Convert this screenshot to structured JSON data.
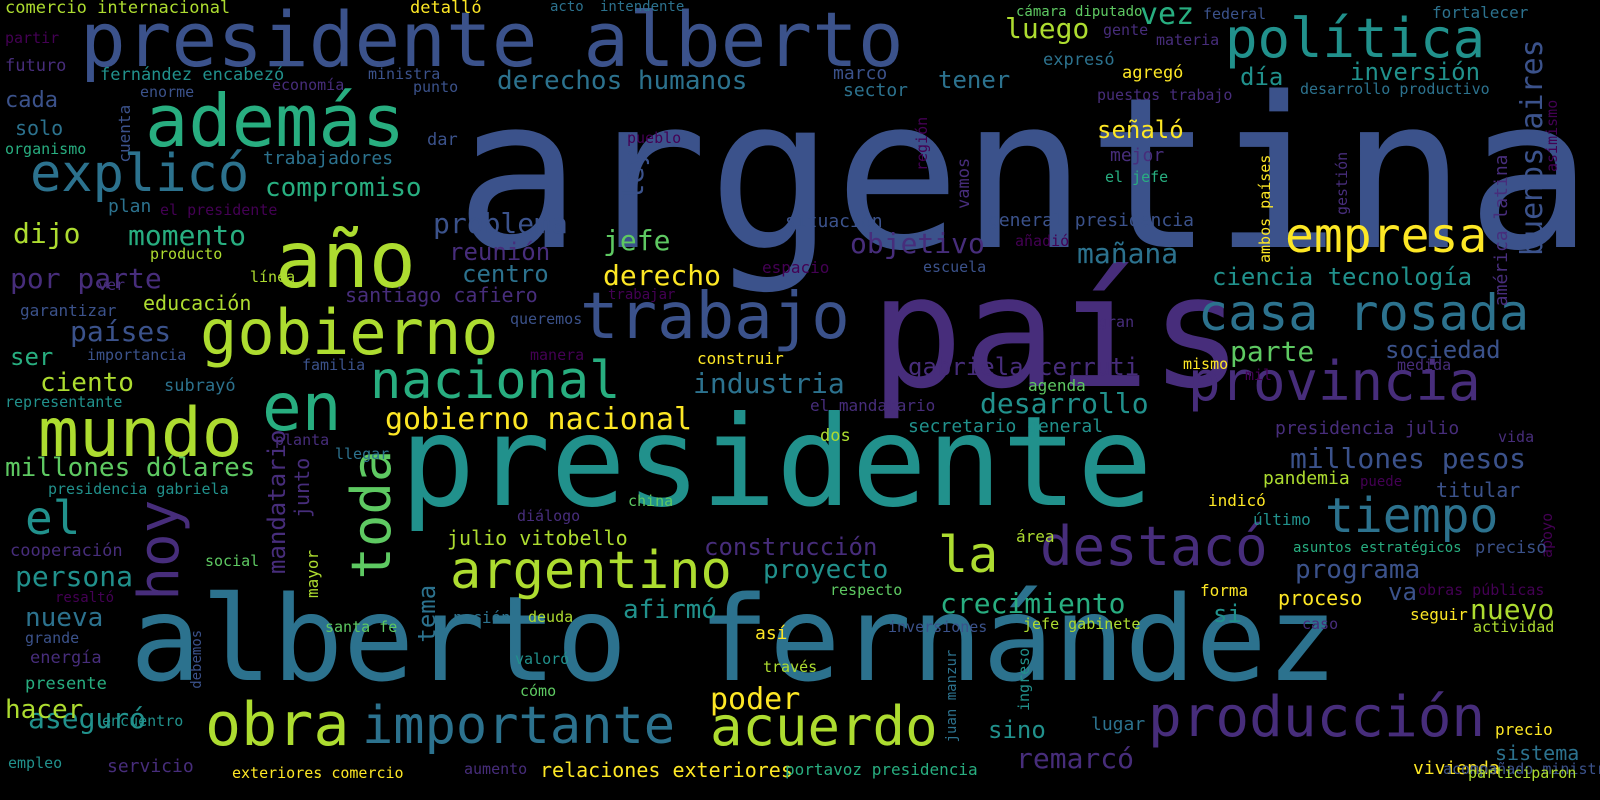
{
  "palette": {
    "background": "#000000",
    "dark_purple": "#440154",
    "purple": "#472d7b",
    "indigo": "#3b528b",
    "blue": "#2c728e",
    "teal": "#21918c",
    "green": "#28ae80",
    "light_green": "#5ec962",
    "lime": "#addc30",
    "yellow": "#fde725"
  },
  "words": [
    {
      "text": "argentina",
      "color": "#3b528b",
      "rot": 0
    },
    {
      "text": "país",
      "color": "#472d7b",
      "rot": 0
    },
    {
      "text": "presidente",
      "color": "#21918c",
      "rot": 0
    },
    {
      "text": "alberto fernández",
      "color": "#2c728e",
      "rot": 0
    },
    {
      "text": "presidente alberto",
      "color": "#3b528b",
      "rot": 0
    },
    {
      "text": "además",
      "color": "#28ae80",
      "rot": 0
    },
    {
      "text": "año",
      "color": "#addc30",
      "rot": 0
    },
    {
      "text": "explicó",
      "color": "#2c728e",
      "rot": 0
    },
    {
      "text": "gobierno",
      "color": "#addc30",
      "rot": 0
    },
    {
      "text": "trabajo",
      "color": "#3b528b",
      "rot": 0
    },
    {
      "text": "política",
      "color": "#21918c",
      "rot": 0
    },
    {
      "text": "empresa",
      "color": "#fde725",
      "rot": 0
    },
    {
      "text": "casa rosada",
      "color": "#2c728e",
      "rot": 0
    },
    {
      "text": "provincia",
      "color": "#472d7b",
      "rot": 0
    },
    {
      "text": "en",
      "color": "#28ae80",
      "rot": 0
    },
    {
      "text": "nacional",
      "color": "#28ae80",
      "rot": 0
    },
    {
      "text": "mundo",
      "color": "#addc30",
      "rot": 0
    },
    {
      "text": "el",
      "color": "#21918c",
      "rot": 0
    },
    {
      "text": "hoy",
      "color": "#472d7b",
      "rot": -90
    },
    {
      "text": "toda",
      "color": "#5ec962",
      "rot": -90
    },
    {
      "text": "argentino",
      "color": "#addc30",
      "rot": 0
    },
    {
      "text": "la",
      "color": "#addc30",
      "rot": 0
    },
    {
      "text": "destacó",
      "color": "#472d7b",
      "rot": 0
    },
    {
      "text": "tiempo",
      "color": "#2c728e",
      "rot": 0
    },
    {
      "text": "obra",
      "color": "#addc30",
      "rot": 0
    },
    {
      "text": "importante",
      "color": "#2c728e",
      "rot": 0
    },
    {
      "text": "acuerdo",
      "color": "#addc30",
      "rot": 0
    },
    {
      "text": "producción",
      "color": "#472d7b",
      "rot": 0
    },
    {
      "text": "derechos humanos",
      "color": "#2c728e",
      "rot": 0
    },
    {
      "text": "luego",
      "color": "#addc30",
      "rot": 0
    },
    {
      "text": "vez",
      "color": "#28ae80",
      "rot": 0
    },
    {
      "text": "tener",
      "color": "#2c728e",
      "rot": 0
    },
    {
      "text": "día",
      "color": "#21918c",
      "rot": 0
    },
    {
      "text": "inversión",
      "color": "#21918c",
      "rot": 0
    },
    {
      "text": "buenos aires",
      "color": "#3b528b",
      "rot": -90
    },
    {
      "text": "américa latina",
      "color": "#472d7b",
      "rot": -90
    },
    {
      "text": "señaló",
      "color": "#fde725",
      "rot": 0
    },
    {
      "text": "mejor",
      "color": "#472d7b",
      "rot": 0
    },
    {
      "text": "el jefe",
      "color": "#28ae80",
      "rot": 0
    },
    {
      "text": "ley",
      "color": "#3b528b",
      "rot": -90
    },
    {
      "text": "compromiso",
      "color": "#28ae80",
      "rot": 0
    },
    {
      "text": "trabajadores",
      "color": "#2c728e",
      "rot": 0
    },
    {
      "text": "dijo",
      "color": "#addc30",
      "rot": 0
    },
    {
      "text": "momento",
      "color": "#28ae80",
      "rot": 0
    },
    {
      "text": "problema",
      "color": "#3b528b",
      "rot": 0
    },
    {
      "text": "jefe",
      "color": "#5ec962",
      "rot": 0
    },
    {
      "text": "objetivo",
      "color": "#472d7b",
      "rot": 0
    },
    {
      "text": "mañana",
      "color": "#2c728e",
      "rot": 0
    },
    {
      "text": "reunión",
      "color": "#472d7b",
      "rot": 0
    },
    {
      "text": "centro",
      "color": "#2c728e",
      "rot": 0
    },
    {
      "text": "derecho",
      "color": "#fde725",
      "rot": 0
    },
    {
      "text": "por parte",
      "color": "#472d7b",
      "rot": 0
    },
    {
      "text": "santiago cafiero",
      "color": "#472d7b",
      "rot": 0
    },
    {
      "text": "ciencia tecnología",
      "color": "#21918c",
      "rot": 0
    },
    {
      "text": "países",
      "color": "#3b528b",
      "rot": 0
    },
    {
      "text": "educación",
      "color": "#addc30",
      "rot": 0
    },
    {
      "text": "ser",
      "color": "#28ae80",
      "rot": 0
    },
    {
      "text": "parte",
      "color": "#5ec962",
      "rot": 0
    },
    {
      "text": "sociedad",
      "color": "#3b528b",
      "rot": 0
    },
    {
      "text": "gabriela cerruti",
      "color": "#472d7b",
      "rot": 0
    },
    {
      "text": "ciento",
      "color": "#addc30",
      "rot": 0
    },
    {
      "text": "industria",
      "color": "#2c728e",
      "rot": 0
    },
    {
      "text": "desarrollo",
      "color": "#21918c",
      "rot": 0
    },
    {
      "text": "gobierno nacional",
      "color": "#fde725",
      "rot": 0
    },
    {
      "text": "secretario general",
      "color": "#21918c",
      "rot": 0
    },
    {
      "text": "millones dólares",
      "color": "#5ec962",
      "rot": 0
    },
    {
      "text": "millones pesos",
      "color": "#3b528b",
      "rot": 0
    },
    {
      "text": "presidencia julio",
      "color": "#472d7b",
      "rot": 0
    },
    {
      "text": "mandatario",
      "color": "#472d7b",
      "rot": -90
    },
    {
      "text": "junto",
      "color": "#472d7b",
      "rot": -90
    },
    {
      "text": "pandemia",
      "color": "#addc30",
      "rot": 0
    },
    {
      "text": "titular",
      "color": "#3b528b",
      "rot": 0
    },
    {
      "text": "julio vitobello",
      "color": "#addc30",
      "rot": 0
    },
    {
      "text": "construcción",
      "color": "#472d7b",
      "rot": 0
    },
    {
      "text": "proyecto",
      "color": "#21918c",
      "rot": 0
    },
    {
      "text": "programa",
      "color": "#3b528b",
      "rot": 0
    },
    {
      "text": "persona",
      "color": "#21918c",
      "rot": 0
    },
    {
      "text": "nueva",
      "color": "#2c728e",
      "rot": 0
    },
    {
      "text": "afirmó",
      "color": "#21918c",
      "rot": 0
    },
    {
      "text": "crecimiento",
      "color": "#28ae80",
      "rot": 0
    },
    {
      "text": "si",
      "color": "#21918c",
      "rot": 0
    },
    {
      "text": "va",
      "color": "#3b528b",
      "rot": 0
    },
    {
      "text": "nuevo",
      "color": "#addc30",
      "rot": 0
    },
    {
      "text": "tema",
      "color": "#2c728e",
      "rot": -90
    },
    {
      "text": "poder",
      "color": "#fde725",
      "rot": 0
    },
    {
      "text": "proceso",
      "color": "#fde725",
      "rot": 0
    },
    {
      "text": "sino",
      "color": "#21918c",
      "rot": 0
    },
    {
      "text": "remarcó",
      "color": "#472d7b",
      "rot": 0
    },
    {
      "text": "aseguró",
      "color": "#21918c",
      "rot": 0
    },
    {
      "text": "hacer",
      "color": "#addc30",
      "rot": 0
    },
    {
      "text": "sistema",
      "color": "#2c728e",
      "rot": 0
    },
    {
      "text": "vivienda",
      "color": "#fde725",
      "rot": 0
    },
    {
      "text": "relaciones exteriores",
      "color": "#fde725",
      "rot": 0
    },
    {
      "text": "portavoz presidencia",
      "color": "#28ae80",
      "rot": 0
    },
    {
      "text": "comercio internacional",
      "color": "#addc30",
      "rot": 0
    },
    {
      "text": "detalló",
      "color": "#fde725",
      "rot": 0
    },
    {
      "text": "acto",
      "color": "#2c728e",
      "rot": 0
    },
    {
      "text": "intendente",
      "color": "#2c728e",
      "rot": 0
    },
    {
      "text": "cámara diputado",
      "color": "#5ec962",
      "rot": 0
    },
    {
      "text": "federal",
      "color": "#3b528b",
      "rot": 0
    },
    {
      "text": "fortalecer",
      "color": "#2c728e",
      "rot": 0
    },
    {
      "text": "partir",
      "color": "#440154",
      "rot": 0
    },
    {
      "text": "futuro",
      "color": "#472d7b",
      "rot": 0
    },
    {
      "text": "cada",
      "color": "#3b528b",
      "rot": 0
    },
    {
      "text": "solo",
      "color": "#2c728e",
      "rot": 0
    },
    {
      "text": "organismo",
      "color": "#28ae80",
      "rot": 0
    },
    {
      "text": "fernández encabezó",
      "color": "#21918c",
      "rot": 0
    },
    {
      "text": "economía",
      "color": "#472d7b",
      "rot": 0
    },
    {
      "text": "ministra",
      "color": "#3b528b",
      "rot": 0
    },
    {
      "text": "enorme",
      "color": "#3b528b",
      "rot": 0
    },
    {
      "text": "punto",
      "color": "#3b528b",
      "rot": 0
    },
    {
      "text": "marco",
      "color": "#3b528b",
      "rot": 0
    },
    {
      "text": "sector",
      "color": "#2c728e",
      "rot": 0
    },
    {
      "text": "expresó",
      "color": "#2c728e",
      "rot": 0
    },
    {
      "text": "gente",
      "color": "#472d7b",
      "rot": 0
    },
    {
      "text": "materia",
      "color": "#472d7b",
      "rot": 0
    },
    {
      "text": "agregó",
      "color": "#fde725",
      "rot": 0
    },
    {
      "text": "puestos trabajo",
      "color": "#472d7b",
      "rot": 0
    },
    {
      "text": "desarrollo productivo",
      "color": "#2c728e",
      "rot": 0
    },
    {
      "text": "cuenta",
      "color": "#3b528b",
      "rot": -90
    },
    {
      "text": "plan",
      "color": "#2c728e",
      "rot": 0
    },
    {
      "text": "el presidente",
      "color": "#440154",
      "rot": 0
    },
    {
      "text": "dar",
      "color": "#3b528b",
      "rot": 0
    },
    {
      "text": "pueblo",
      "color": "#440154",
      "rot": 0
    },
    {
      "text": "región",
      "color": "#440154",
      "rot": -90
    },
    {
      "text": "gestión",
      "color": "#472d7b",
      "rot": -90
    },
    {
      "text": "asimismo",
      "color": "#440154",
      "rot": -90
    },
    {
      "text": "ambos países",
      "color": "#fde725",
      "rot": -90
    },
    {
      "text": "ver",
      "color": "#472d7b",
      "rot": 0
    },
    {
      "text": "producto",
      "color": "#addc30",
      "rot": 0
    },
    {
      "text": "situación",
      "color": "#3b528b",
      "rot": 0
    },
    {
      "text": "vamos",
      "color": "#472d7b",
      "rot": -90
    },
    {
      "text": "general presidencia",
      "color": "#3b528b",
      "rot": 0
    },
    {
      "text": "añadió",
      "color": "#440154",
      "rot": 0
    },
    {
      "text": "línea",
      "color": "#addc30",
      "rot": 0
    },
    {
      "text": "espacio",
      "color": "#440154",
      "rot": 0
    },
    {
      "text": "escuela",
      "color": "#3b528b",
      "rot": 0
    },
    {
      "text": "trabajar",
      "color": "#440154",
      "rot": 0
    },
    {
      "text": "garantizar",
      "color": "#3b528b",
      "rot": 0
    },
    {
      "text": "queremos",
      "color": "#3b528b",
      "rot": 0
    },
    {
      "text": "gran",
      "color": "#472d7b",
      "rot": 0
    },
    {
      "text": "importancia",
      "color": "#3b528b",
      "rot": 0
    },
    {
      "text": "manera",
      "color": "#440154",
      "rot": 0
    },
    {
      "text": "construir",
      "color": "#fde725",
      "rot": 0
    },
    {
      "text": "mismo",
      "color": "#fde725",
      "rot": 0
    },
    {
      "text": "medida",
      "color": "#472d7b",
      "rot": 0
    },
    {
      "text": "familia",
      "color": "#3b528b",
      "rot": 0
    },
    {
      "text": "agenda",
      "color": "#5ec962",
      "rot": 0
    },
    {
      "text": "mil",
      "color": "#440154",
      "rot": 0
    },
    {
      "text": "subrayó",
      "color": "#2c728e",
      "rot": 0
    },
    {
      "text": "representante",
      "color": "#21918c",
      "rot": 0
    },
    {
      "text": "el mandatario",
      "color": "#472d7b",
      "rot": 0
    },
    {
      "text": "planta",
      "color": "#472d7b",
      "rot": 0
    },
    {
      "text": "dos",
      "color": "#addc30",
      "rot": 0
    },
    {
      "text": "vida",
      "color": "#472d7b",
      "rot": 0
    },
    {
      "text": "llegar",
      "color": "#2c728e",
      "rot": 0
    },
    {
      "text": "presidencia gabriela",
      "color": "#21918c",
      "rot": 0
    },
    {
      "text": "puede",
      "color": "#440154",
      "rot": 0
    },
    {
      "text": "indicó",
      "color": "#fde725",
      "rot": 0
    },
    {
      "text": "último",
      "color": "#21918c",
      "rot": 0
    },
    {
      "text": "apoyo",
      "color": "#440154",
      "rot": -90
    },
    {
      "text": "china",
      "color": "#5ec962",
      "rot": 0
    },
    {
      "text": "diálogo",
      "color": "#472d7b",
      "rot": 0
    },
    {
      "text": "área",
      "color": "#addc30",
      "rot": 0
    },
    {
      "text": "cooperación",
      "color": "#472d7b",
      "rot": 0
    },
    {
      "text": "social",
      "color": "#5ec962",
      "rot": 0
    },
    {
      "text": "asuntos estratégicos",
      "color": "#28ae80",
      "rot": 0
    },
    {
      "text": "precisó",
      "color": "#3b528b",
      "rot": 0
    },
    {
      "text": "mayor",
      "color": "#addc30",
      "rot": -90
    },
    {
      "text": "respecto",
      "color": "#5ec962",
      "rot": 0
    },
    {
      "text": "forma",
      "color": "#fde725",
      "rot": 0
    },
    {
      "text": "obras públicas",
      "color": "#440154",
      "rot": 0
    },
    {
      "text": "resaltó",
      "color": "#440154",
      "rot": 0
    },
    {
      "text": "santa fe",
      "color": "#5ec962",
      "rot": 0
    },
    {
      "text": "nación",
      "color": "#2c728e",
      "rot": 0
    },
    {
      "text": "deuda",
      "color": "#addc30",
      "rot": 0
    },
    {
      "text": "jefe gabinete",
      "color": "#addc30",
      "rot": 0
    },
    {
      "text": "seguir",
      "color": "#fde725",
      "rot": 0
    },
    {
      "text": "caso",
      "color": "#472d7b",
      "rot": 0
    },
    {
      "text": "actividad",
      "color": "#addc30",
      "rot": 0
    },
    {
      "text": "grande",
      "color": "#3b528b",
      "rot": 0
    },
    {
      "text": "debemos",
      "color": "#3b528b",
      "rot": -90
    },
    {
      "text": "inversiones",
      "color": "#3b528b",
      "rot": 0
    },
    {
      "text": "así",
      "color": "#fde725",
      "rot": 0
    },
    {
      "text": "energía",
      "color": "#472d7b",
      "rot": 0
    },
    {
      "text": "valoró",
      "color": "#21918c",
      "rot": 0
    },
    {
      "text": "ingreso",
      "color": "#21918c",
      "rot": -90
    },
    {
      "text": "presente",
      "color": "#28ae80",
      "rot": 0
    },
    {
      "text": "cómo",
      "color": "#5ec962",
      "rot": 0
    },
    {
      "text": "través",
      "color": "#addc30",
      "rot": 0
    },
    {
      "text": "juan manzur",
      "color": "#2c728e",
      "rot": -90
    },
    {
      "text": "lugar",
      "color": "#2c728e",
      "rot": 0
    },
    {
      "text": "encuentro",
      "color": "#21918c",
      "rot": 0
    },
    {
      "text": "precio",
      "color": "#fde725",
      "rot": 0
    },
    {
      "text": "empleo",
      "color": "#21918c",
      "rot": 0
    },
    {
      "text": "servicio",
      "color": "#472d7b",
      "rot": 0
    },
    {
      "text": "exteriores comercio",
      "color": "#fde725",
      "rot": 0
    },
    {
      "text": "aumento",
      "color": "#472d7b",
      "rot": 0
    },
    {
      "text": "acompañado ministro",
      "color": "#3b528b",
      "rot": 0
    },
    {
      "text": "participaron",
      "color": "#addc30",
      "rot": 0
    }
  ]
}
